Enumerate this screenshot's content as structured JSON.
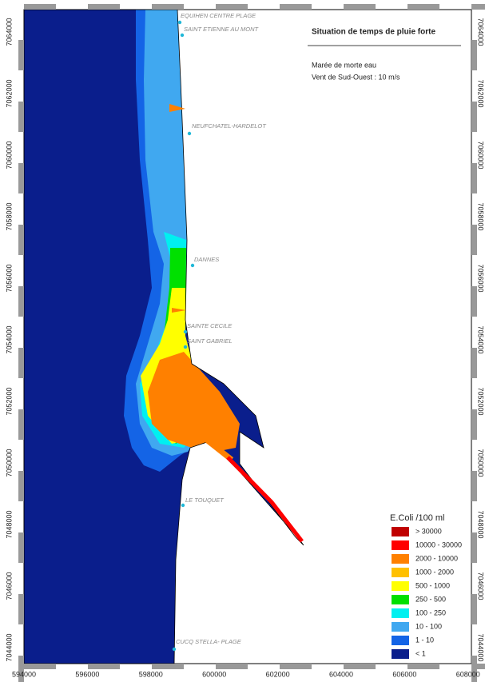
{
  "header": {
    "title": "Situation de temps de pluie forte",
    "notes": [
      "Marée de morte eau",
      "Vent de Sud-Ouest    : 10 m/s"
    ]
  },
  "places": [
    "EQUIHEN CENTRE PLAGE",
    "SAINT ETIENNE AU MONT",
    "NEUFCHATEL-HARDELOT",
    "DANNES",
    "SAINTE CECILE",
    "SAINT GABRIEL",
    "LE TOUQUET",
    "CUCQ STELLA- PLAGE"
  ],
  "axes": {
    "x_ticks": [
      594000,
      596000,
      598000,
      600000,
      602000,
      604000,
      606000,
      608000
    ],
    "y_ticks": [
      7064000,
      7062000,
      7060000,
      7058000,
      7056000,
      7054000,
      7052000,
      7050000,
      7048000,
      7046000,
      7044000
    ]
  },
  "legend": {
    "title": "E.Coli /100 ml",
    "items": [
      {
        "label": "> 30000",
        "color": "#c00000"
      },
      {
        "label": "10000 - 30000",
        "color": "#ff0000"
      },
      {
        "label": "2000 - 10000",
        "color": "#ff8000"
      },
      {
        "label": "1000 - 2000",
        "color": "#ffc000"
      },
      {
        "label": "500 - 1000",
        "color": "#ffff00"
      },
      {
        "label": "250 - 500",
        "color": "#00e000"
      },
      {
        "label": "100 - 250",
        "color": "#00f0f0"
      },
      {
        "label": "10 - 100",
        "color": "#40a8f0"
      },
      {
        "label": "1 - 10",
        "color": "#1464e6"
      },
      {
        "label": "< 1",
        "color": "#0a1e8c"
      }
    ]
  }
}
